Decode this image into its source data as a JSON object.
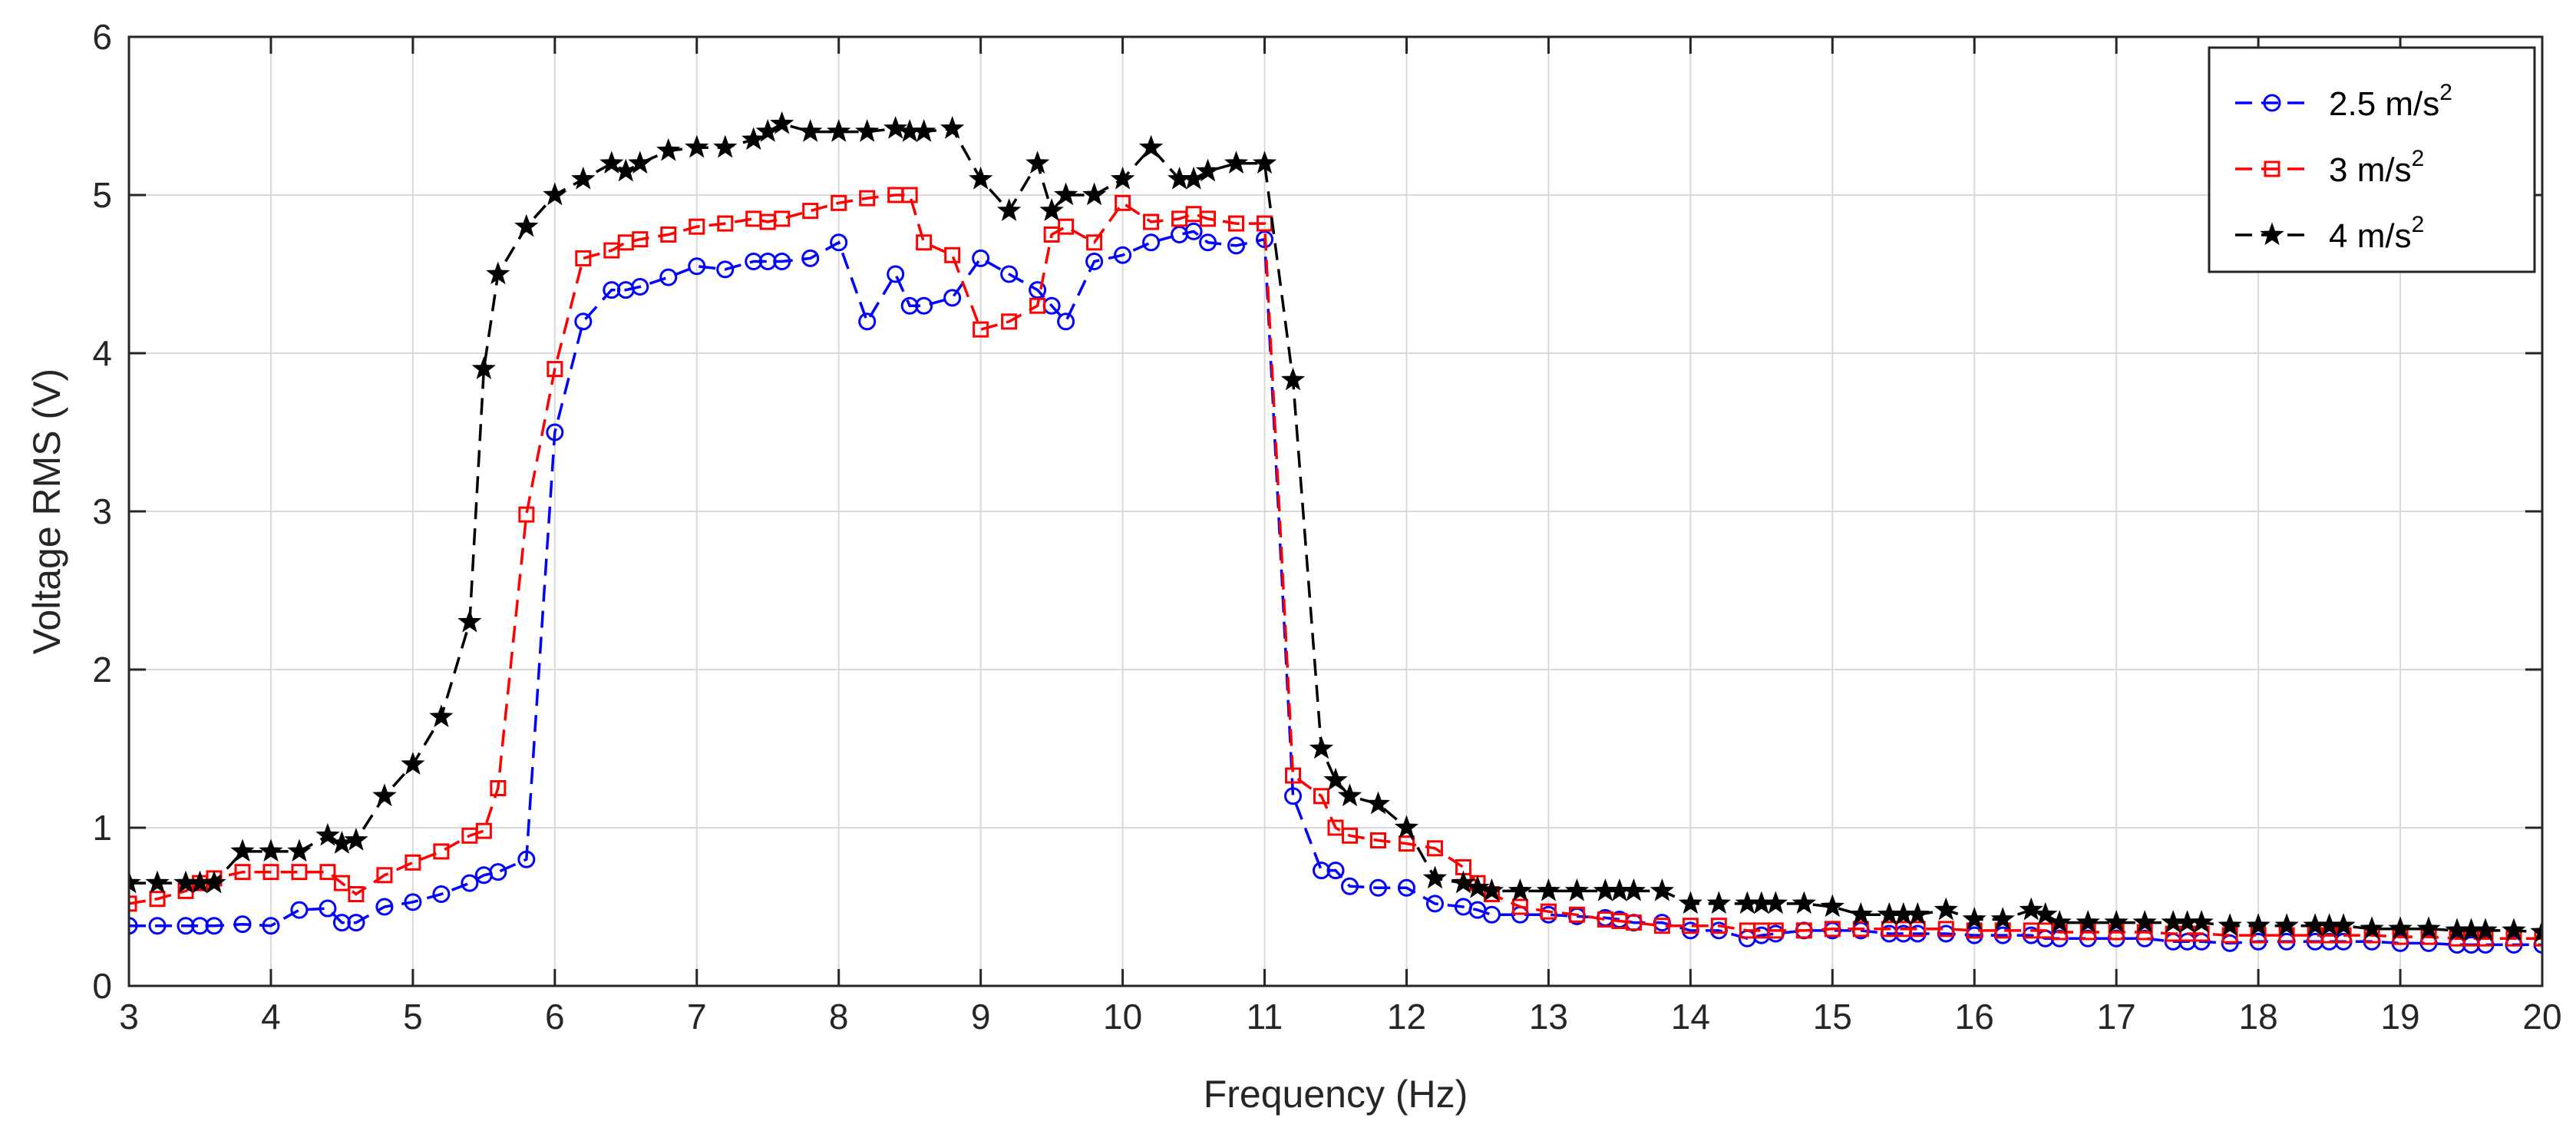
{
  "chart_data": {
    "type": "line",
    "title": "",
    "xlabel": "Frequency (Hz)",
    "ylabel": "Voltage RMS (V)",
    "xlim": [
      3,
      20
    ],
    "ylim": [
      0,
      6
    ],
    "xticks": [
      3,
      4,
      5,
      6,
      7,
      8,
      9,
      10,
      11,
      12,
      13,
      14,
      15,
      16,
      17,
      18,
      19,
      20
    ],
    "yticks": [
      0,
      1,
      2,
      3,
      4,
      5,
      6
    ],
    "grid": true,
    "legend_position": "top-right",
    "series": [
      {
        "name": "2.5 m/s",
        "name_sup": "2",
        "color": "#0000ff",
        "marker": "circle",
        "x": [
          3.0,
          3.2,
          3.4,
          3.5,
          3.6,
          3.8,
          4.0,
          4.2,
          4.4,
          4.5,
          4.6,
          4.8,
          5.0,
          5.2,
          5.4,
          5.5,
          5.6,
          5.8,
          6.0,
          6.2,
          6.4,
          6.5,
          6.6,
          6.8,
          7.0,
          7.2,
          7.4,
          7.5,
          7.6,
          7.8,
          8.0,
          8.2,
          8.4,
          8.5,
          8.6,
          8.8,
          9.0,
          9.2,
          9.4,
          9.5,
          9.6,
          9.8,
          10.0,
          10.2,
          10.4,
          10.5,
          10.6,
          10.8,
          11.0,
          11.2,
          11.4,
          11.5,
          11.6,
          11.8,
          12.0,
          12.2,
          12.4,
          12.5,
          12.6,
          12.8,
          13.0,
          13.2,
          13.4,
          13.5,
          13.6,
          13.8,
          14.0,
          14.2,
          14.4,
          14.5,
          14.6,
          14.8,
          15.0,
          15.2,
          15.4,
          15.5,
          15.6,
          15.8,
          16.0,
          16.2,
          16.4,
          16.5,
          16.6,
          16.8,
          17.0,
          17.2,
          17.4,
          17.5,
          17.6,
          17.8,
          18.0,
          18.2,
          18.4,
          18.5,
          18.6,
          18.8,
          19.0,
          19.2,
          19.4,
          19.5,
          19.6,
          19.8,
          20.0
        ],
        "y": [
          0.38,
          0.38,
          0.38,
          0.38,
          0.38,
          0.39,
          0.38,
          0.48,
          0.49,
          0.4,
          0.4,
          0.5,
          0.53,
          0.58,
          0.65,
          0.7,
          0.72,
          0.8,
          3.5,
          4.2,
          4.4,
          4.4,
          4.42,
          4.48,
          4.55,
          4.53,
          4.58,
          4.58,
          4.58,
          4.6,
          4.7,
          4.2,
          4.5,
          4.3,
          4.3,
          4.35,
          4.6,
          4.5,
          4.4,
          4.3,
          4.2,
          4.58,
          4.62,
          4.7,
          4.75,
          4.77,
          4.7,
          4.68,
          4.72,
          1.2,
          0.73,
          0.73,
          0.63,
          0.62,
          0.62,
          0.52,
          0.5,
          0.48,
          0.45,
          0.45,
          0.45,
          0.44,
          0.43,
          0.42,
          0.4,
          0.4,
          0.35,
          0.35,
          0.3,
          0.32,
          0.33,
          0.35,
          0.35,
          0.35,
          0.33,
          0.33,
          0.33,
          0.33,
          0.32,
          0.32,
          0.32,
          0.3,
          0.3,
          0.3,
          0.3,
          0.3,
          0.28,
          0.28,
          0.28,
          0.27,
          0.28,
          0.28,
          0.28,
          0.28,
          0.28,
          0.28,
          0.27,
          0.27,
          0.26,
          0.26,
          0.26,
          0.26,
          0.26
        ]
      },
      {
        "name": "3 m/s",
        "name_sup": "2",
        "color": "#ff0000",
        "marker": "square",
        "x": [
          3.0,
          3.2,
          3.4,
          3.5,
          3.6,
          3.8,
          4.0,
          4.2,
          4.4,
          4.5,
          4.6,
          4.8,
          5.0,
          5.2,
          5.4,
          5.5,
          5.6,
          5.8,
          6.0,
          6.2,
          6.4,
          6.5,
          6.6,
          6.8,
          7.0,
          7.2,
          7.4,
          7.5,
          7.6,
          7.8,
          8.0,
          8.2,
          8.4,
          8.5,
          8.6,
          8.8,
          9.0,
          9.2,
          9.4,
          9.5,
          9.6,
          9.8,
          10.0,
          10.2,
          10.4,
          10.5,
          10.6,
          10.8,
          11.0,
          11.2,
          11.4,
          11.5,
          11.6,
          11.8,
          12.0,
          12.2,
          12.4,
          12.5,
          12.6,
          12.8,
          13.0,
          13.2,
          13.4,
          13.5,
          13.6,
          13.8,
          14.0,
          14.2,
          14.4,
          14.5,
          14.6,
          14.8,
          15.0,
          15.2,
          15.4,
          15.5,
          15.6,
          15.8,
          16.0,
          16.2,
          16.4,
          16.5,
          16.6,
          16.8,
          17.0,
          17.2,
          17.4,
          17.5,
          17.6,
          17.8,
          18.0,
          18.2,
          18.4,
          18.5,
          18.6,
          18.8,
          19.0,
          19.2,
          19.4,
          19.5,
          19.6,
          19.8,
          20.0
        ],
        "y": [
          0.52,
          0.55,
          0.6,
          0.65,
          0.68,
          0.72,
          0.72,
          0.72,
          0.72,
          0.65,
          0.58,
          0.7,
          0.78,
          0.85,
          0.95,
          0.98,
          1.25,
          2.98,
          3.9,
          4.6,
          4.65,
          4.7,
          4.72,
          4.75,
          4.8,
          4.82,
          4.85,
          4.83,
          4.85,
          4.9,
          4.95,
          4.98,
          5.0,
          5.0,
          4.7,
          4.62,
          4.15,
          4.2,
          4.3,
          4.75,
          4.8,
          4.7,
          4.95,
          4.83,
          4.85,
          4.88,
          4.85,
          4.82,
          4.82,
          1.33,
          1.2,
          1.0,
          0.95,
          0.92,
          0.9,
          0.87,
          0.75,
          0.65,
          0.58,
          0.5,
          0.47,
          0.45,
          0.42,
          0.41,
          0.4,
          0.38,
          0.38,
          0.38,
          0.35,
          0.35,
          0.35,
          0.35,
          0.36,
          0.36,
          0.36,
          0.36,
          0.36,
          0.36,
          0.35,
          0.35,
          0.35,
          0.35,
          0.34,
          0.34,
          0.34,
          0.34,
          0.33,
          0.33,
          0.33,
          0.32,
          0.32,
          0.32,
          0.32,
          0.32,
          0.32,
          0.32,
          0.31,
          0.31,
          0.3,
          0.3,
          0.3,
          0.3,
          0.3
        ]
      },
      {
        "name": "4 m/s",
        "name_sup": "2",
        "color": "#000000",
        "marker": "star",
        "x": [
          3.0,
          3.2,
          3.4,
          3.5,
          3.6,
          3.8,
          4.0,
          4.2,
          4.4,
          4.5,
          4.6,
          4.8,
          5.0,
          5.2,
          5.4,
          5.5,
          5.6,
          5.8,
          6.0,
          6.2,
          6.4,
          6.5,
          6.6,
          6.8,
          7.0,
          7.2,
          7.4,
          7.5,
          7.6,
          7.8,
          8.0,
          8.2,
          8.4,
          8.5,
          8.6,
          8.8,
          9.0,
          9.2,
          9.4,
          9.5,
          9.6,
          9.8,
          10.0,
          10.2,
          10.4,
          10.5,
          10.6,
          10.8,
          11.0,
          11.2,
          11.4,
          11.5,
          11.6,
          11.8,
          12.0,
          12.2,
          12.4,
          12.5,
          12.6,
          12.8,
          13.0,
          13.2,
          13.4,
          13.5,
          13.6,
          13.8,
          14.0,
          14.2,
          14.4,
          14.5,
          14.6,
          14.8,
          15.0,
          15.2,
          15.4,
          15.5,
          15.6,
          15.8,
          16.0,
          16.2,
          16.4,
          16.5,
          16.6,
          16.8,
          17.0,
          17.2,
          17.4,
          17.5,
          17.6,
          17.8,
          18.0,
          18.2,
          18.4,
          18.5,
          18.6,
          18.8,
          19.0,
          19.2,
          19.4,
          19.5,
          19.6,
          19.8,
          20.0
        ],
        "y": [
          0.65,
          0.65,
          0.65,
          0.65,
          0.65,
          0.85,
          0.85,
          0.85,
          0.95,
          0.9,
          0.92,
          1.2,
          1.4,
          1.7,
          2.3,
          3.9,
          4.5,
          4.8,
          5.0,
          5.1,
          5.2,
          5.15,
          5.2,
          5.28,
          5.3,
          5.3,
          5.35,
          5.4,
          5.45,
          5.4,
          5.4,
          5.4,
          5.42,
          5.4,
          5.4,
          5.42,
          5.1,
          4.9,
          5.2,
          4.9,
          5.0,
          5.0,
          5.1,
          5.3,
          5.1,
          5.1,
          5.15,
          5.2,
          5.2,
          3.83,
          1.5,
          1.3,
          1.2,
          1.15,
          1.0,
          0.68,
          0.65,
          0.62,
          0.6,
          0.6,
          0.6,
          0.6,
          0.6,
          0.6,
          0.6,
          0.6,
          0.52,
          0.52,
          0.52,
          0.52,
          0.52,
          0.52,
          0.5,
          0.45,
          0.45,
          0.45,
          0.45,
          0.48,
          0.42,
          0.42,
          0.48,
          0.45,
          0.4,
          0.4,
          0.4,
          0.4,
          0.4,
          0.4,
          0.4,
          0.38,
          0.38,
          0.38,
          0.38,
          0.38,
          0.38,
          0.36,
          0.36,
          0.36,
          0.35,
          0.35,
          0.35,
          0.35,
          0.34
        ]
      }
    ]
  }
}
